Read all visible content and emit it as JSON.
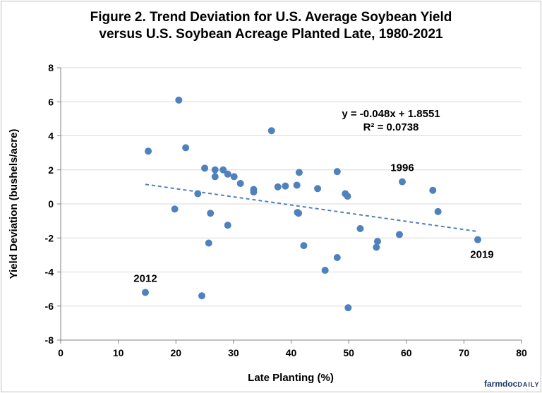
{
  "chart_data": {
    "type": "scatter",
    "title_line1": "Figure 2. Trend Deviation for U.S. Average Soybean Yield",
    "title_line2": "versus U.S. Soybean Acreage Planted Late, 1980-2021",
    "xlabel": "Late Planting (%)",
    "ylabel": "Yield Deviation (bushels/acre)",
    "xlim": [
      0,
      80
    ],
    "ylim": [
      -8,
      8
    ],
    "xticks": [
      0,
      10,
      20,
      30,
      40,
      50,
      60,
      70,
      80
    ],
    "yticks": [
      -8,
      -6,
      -4,
      -2,
      0,
      2,
      4,
      6,
      8
    ],
    "grid": "horizontal",
    "marker_color": "#4f81bd",
    "points": [
      {
        "x": 14.7,
        "y": -5.2
      },
      {
        "x": 15.2,
        "y": 3.1
      },
      {
        "x": 19.8,
        "y": -0.3
      },
      {
        "x": 20.5,
        "y": 6.1
      },
      {
        "x": 21.7,
        "y": 3.3
      },
      {
        "x": 23.8,
        "y": 0.6
      },
      {
        "x": 24.5,
        "y": -5.4
      },
      {
        "x": 25.0,
        "y": 2.1
      },
      {
        "x": 25.7,
        "y": -2.3
      },
      {
        "x": 26.0,
        "y": -0.55
      },
      {
        "x": 26.8,
        "y": 2.0
      },
      {
        "x": 26.8,
        "y": 1.6
      },
      {
        "x": 28.2,
        "y": 2.0
      },
      {
        "x": 29.0,
        "y": 1.75
      },
      {
        "x": 29.0,
        "y": -1.25
      },
      {
        "x": 30.1,
        "y": 1.6
      },
      {
        "x": 31.2,
        "y": 1.2
      },
      {
        "x": 33.5,
        "y": 0.85
      },
      {
        "x": 33.5,
        "y": 0.7
      },
      {
        "x": 36.6,
        "y": 4.3
      },
      {
        "x": 37.7,
        "y": 1.0
      },
      {
        "x": 39.0,
        "y": 1.05
      },
      {
        "x": 41.0,
        "y": 1.1
      },
      {
        "x": 41.1,
        "y": -0.5
      },
      {
        "x": 41.3,
        "y": -0.55
      },
      {
        "x": 41.4,
        "y": 1.85
      },
      {
        "x": 42.2,
        "y": -2.45
      },
      {
        "x": 44.6,
        "y": 0.9
      },
      {
        "x": 45.9,
        "y": -3.9
      },
      {
        "x": 48.0,
        "y": 1.9
      },
      {
        "x": 48.0,
        "y": -3.15
      },
      {
        "x": 49.4,
        "y": 0.6
      },
      {
        "x": 49.8,
        "y": 0.45
      },
      {
        "x": 49.9,
        "y": -6.1
      },
      {
        "x": 52.0,
        "y": -1.45
      },
      {
        "x": 54.8,
        "y": -2.55
      },
      {
        "x": 55.0,
        "y": -2.2
      },
      {
        "x": 58.8,
        "y": -1.8
      },
      {
        "x": 59.3,
        "y": 1.3
      },
      {
        "x": 64.6,
        "y": 0.8
      },
      {
        "x": 65.5,
        "y": -0.45
      },
      {
        "x": 72.4,
        "y": -2.1
      }
    ],
    "trendline": {
      "slope": -0.048,
      "intercept": 1.8551,
      "x_range": [
        14.7,
        72.4
      ],
      "equation": "y = -0.048x + 1.8551",
      "r_squared": "R² = 0.0738"
    },
    "annotations": [
      {
        "text": "1996",
        "x": 59.3,
        "y": 1.3,
        "placement": "above"
      },
      {
        "text": "2012",
        "x": 14.7,
        "y": -5.2,
        "placement": "above"
      },
      {
        "text": "2019",
        "x": 72.4,
        "y": -2.1,
        "placement": "below"
      }
    ]
  },
  "branding": {
    "name_part1": "farmdoc",
    "name_part2": "DAILY"
  }
}
